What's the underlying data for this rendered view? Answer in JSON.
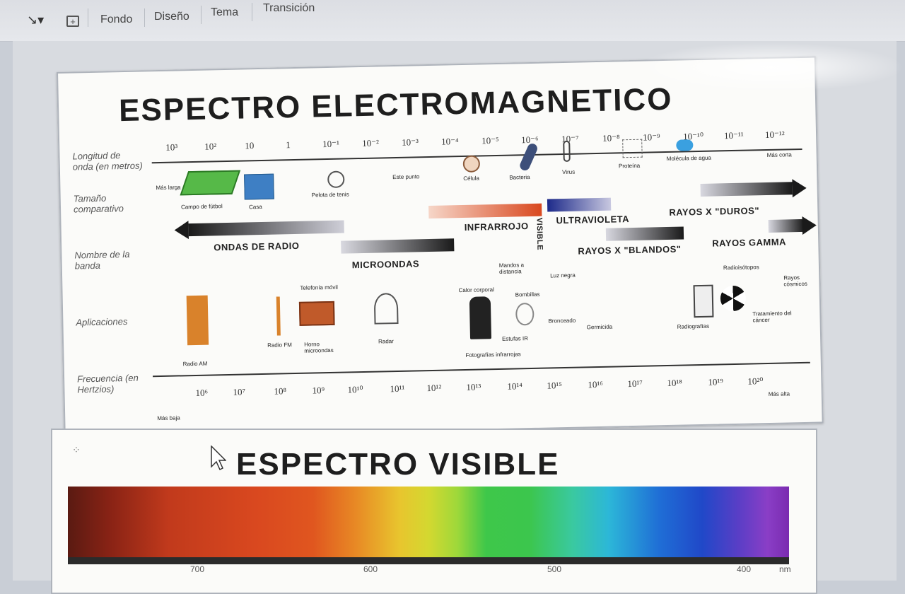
{
  "toolbar": {
    "items": [
      "Fondo",
      "Diseño",
      "Tema",
      "Transición"
    ]
  },
  "slide1": {
    "title": "ESPECTRO ELECTROMAGNETICO",
    "row_labels": {
      "wavelength": "Longitud de onda (en metros)",
      "size": "Tamaño comparativo",
      "band": "Nombre de la banda",
      "applications": "Aplicaciones",
      "frequency": "Frecuencia (en Hertzios)"
    },
    "wavelength_ticks": [
      "10³",
      "10²",
      "10",
      "1",
      "10⁻¹",
      "10⁻²",
      "10⁻³",
      "10⁻⁴",
      "10⁻⁵",
      "10⁻⁶",
      "10⁻⁷",
      "10⁻⁸",
      "10⁻⁹",
      "10⁻¹⁰",
      "10⁻¹¹",
      "10⁻¹²"
    ],
    "shorter_label": "Más corta",
    "longer_label": "Más larga",
    "size_items": [
      "Campo de fútbol",
      "Casa",
      "Pelota de tenis",
      "Este punto",
      "Célula",
      "Bacteria",
      "Virus",
      "Proteína",
      "Molécula de agua"
    ],
    "bands": {
      "radio": "ONDAS DE RADIO",
      "microwave": "MICROONDAS",
      "infrared": "INFRARROJO",
      "visible": "VISIBLE",
      "ultraviolet": "ULTRAVIOLETA",
      "xray_hard": "RAYOS X \"DUROS\"",
      "xray_soft": "RAYOS X \"BLANDOS\"",
      "gamma": "RAYOS GAMMA"
    },
    "applications": [
      "Radio AM",
      "Radio FM",
      "Telefonía móvil",
      "Horno microondas",
      "Radar",
      "Calor corporal",
      "Mandos a distancia",
      "Bombillas",
      "Estufas IR",
      "Fotografías infrarrojas",
      "Luz negra",
      "Bronceado",
      "Germicida",
      "Radiografías",
      "Radioisótopos",
      "Rayos cósmicos",
      "Tratamiento del cáncer"
    ],
    "frequency_ticks": [
      "10⁶",
      "10⁷",
      "10⁸",
      "10⁹",
      "10¹⁰",
      "10¹¹",
      "10¹²",
      "10¹³",
      "10¹⁴",
      "10¹⁵",
      "10¹⁶",
      "10¹⁷",
      "10¹⁸",
      "10¹⁹",
      "10²⁰"
    ],
    "freq_higher": "Más alta",
    "freq_lower": "Más baja"
  },
  "slide2": {
    "title": "ESPECTRO VISIBLE",
    "nm_ticks": [
      "700",
      "600",
      "500",
      "400"
    ],
    "unit": "nm"
  },
  "colors": {
    "infrared": "#d9481f",
    "ultraviolet": "#2230a8",
    "accent_dark": "#1a1a1a"
  }
}
